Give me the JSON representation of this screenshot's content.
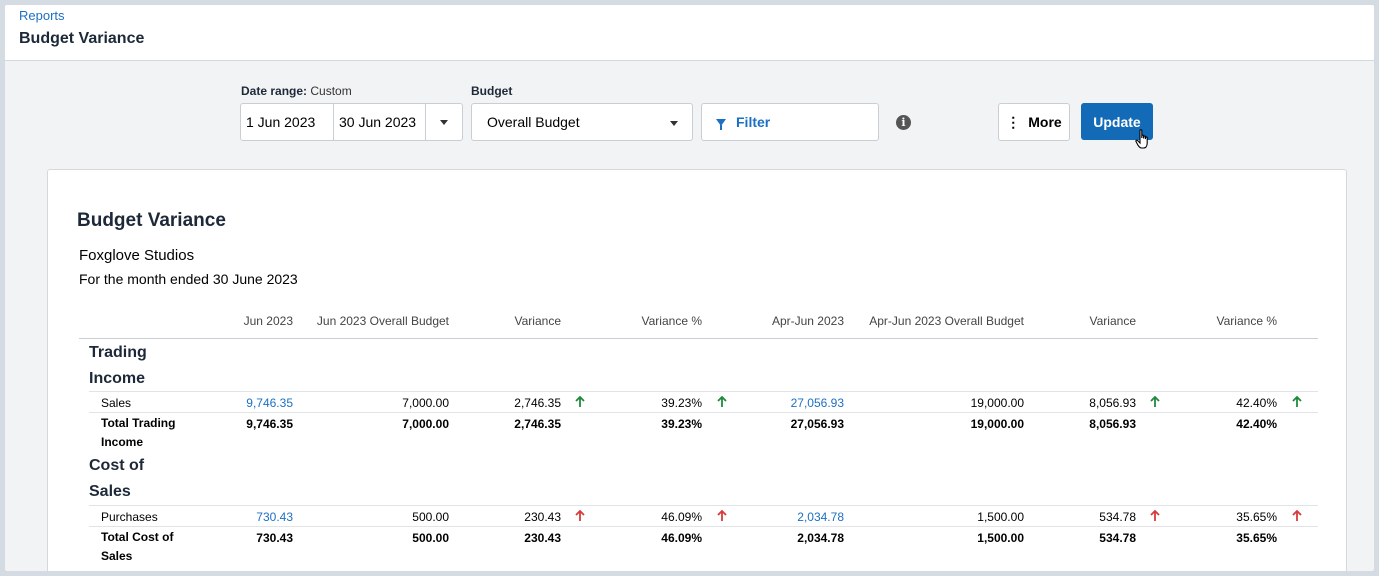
{
  "breadcrumb": "Reports",
  "page_title": "Budget Variance",
  "controls": {
    "date_range_label": "Date range:",
    "date_range_value": "Custom",
    "date_from": "1 Jun 2023",
    "date_to": "30 Jun 2023",
    "budget_label": "Budget",
    "budget_value": "Overall Budget",
    "filter_label": "Filter",
    "more_label": "More",
    "update_label": "Update"
  },
  "report": {
    "title": "Budget Variance",
    "organisation": "Foxglove Studios",
    "period": "For the month ended 30 June 2023",
    "columns": [
      "Jun 2023",
      "Jun 2023 Overall Budget",
      "Variance",
      "Variance %",
      "Apr-Jun 2023",
      "Apr-Jun 2023 Overall Budget",
      "Variance",
      "Variance %"
    ],
    "sections": [
      {
        "heading_line1": "Trading",
        "heading_line2": "Income",
        "row": {
          "label": "Sales",
          "values": [
            "9,746.35",
            "7,000.00",
            "2,746.35",
            "39.23%",
            "27,056.93",
            "19,000.00",
            "8,056.93",
            "42.40%"
          ],
          "trend": "up",
          "trend_color": "#1e8a3c"
        },
        "total": {
          "label_line1": "Total Trading",
          "label_line2": "Income",
          "values": [
            "9,746.35",
            "7,000.00",
            "2,746.35",
            "39.23%",
            "27,056.93",
            "19,000.00",
            "8,056.93",
            "42.40%"
          ]
        }
      },
      {
        "heading_line1": "Cost of",
        "heading_line2": "Sales",
        "row": {
          "label": "Purchases",
          "values": [
            "730.43",
            "500.00",
            "230.43",
            "46.09%",
            "2,034.78",
            "1,500.00",
            "534.78",
            "35.65%"
          ],
          "trend": "up",
          "trend_color": "#d93b3b"
        },
        "total": {
          "label_line1": "Total Cost of",
          "label_line2": "Sales",
          "values": [
            "730.43",
            "500.00",
            "230.43",
            "46.09%",
            "2,034.78",
            "1,500.00",
            "534.78",
            "35.65%"
          ]
        }
      }
    ]
  },
  "colors": {
    "accent": "#136bb8",
    "link": "#1c70c4",
    "positive": "#1e8a3c",
    "negative": "#d93b3b"
  },
  "icons": [
    "caret-down-icon",
    "filter-icon",
    "info-icon",
    "more-vertical-icon",
    "up-arrow-icon",
    "hand-cursor-icon"
  ]
}
